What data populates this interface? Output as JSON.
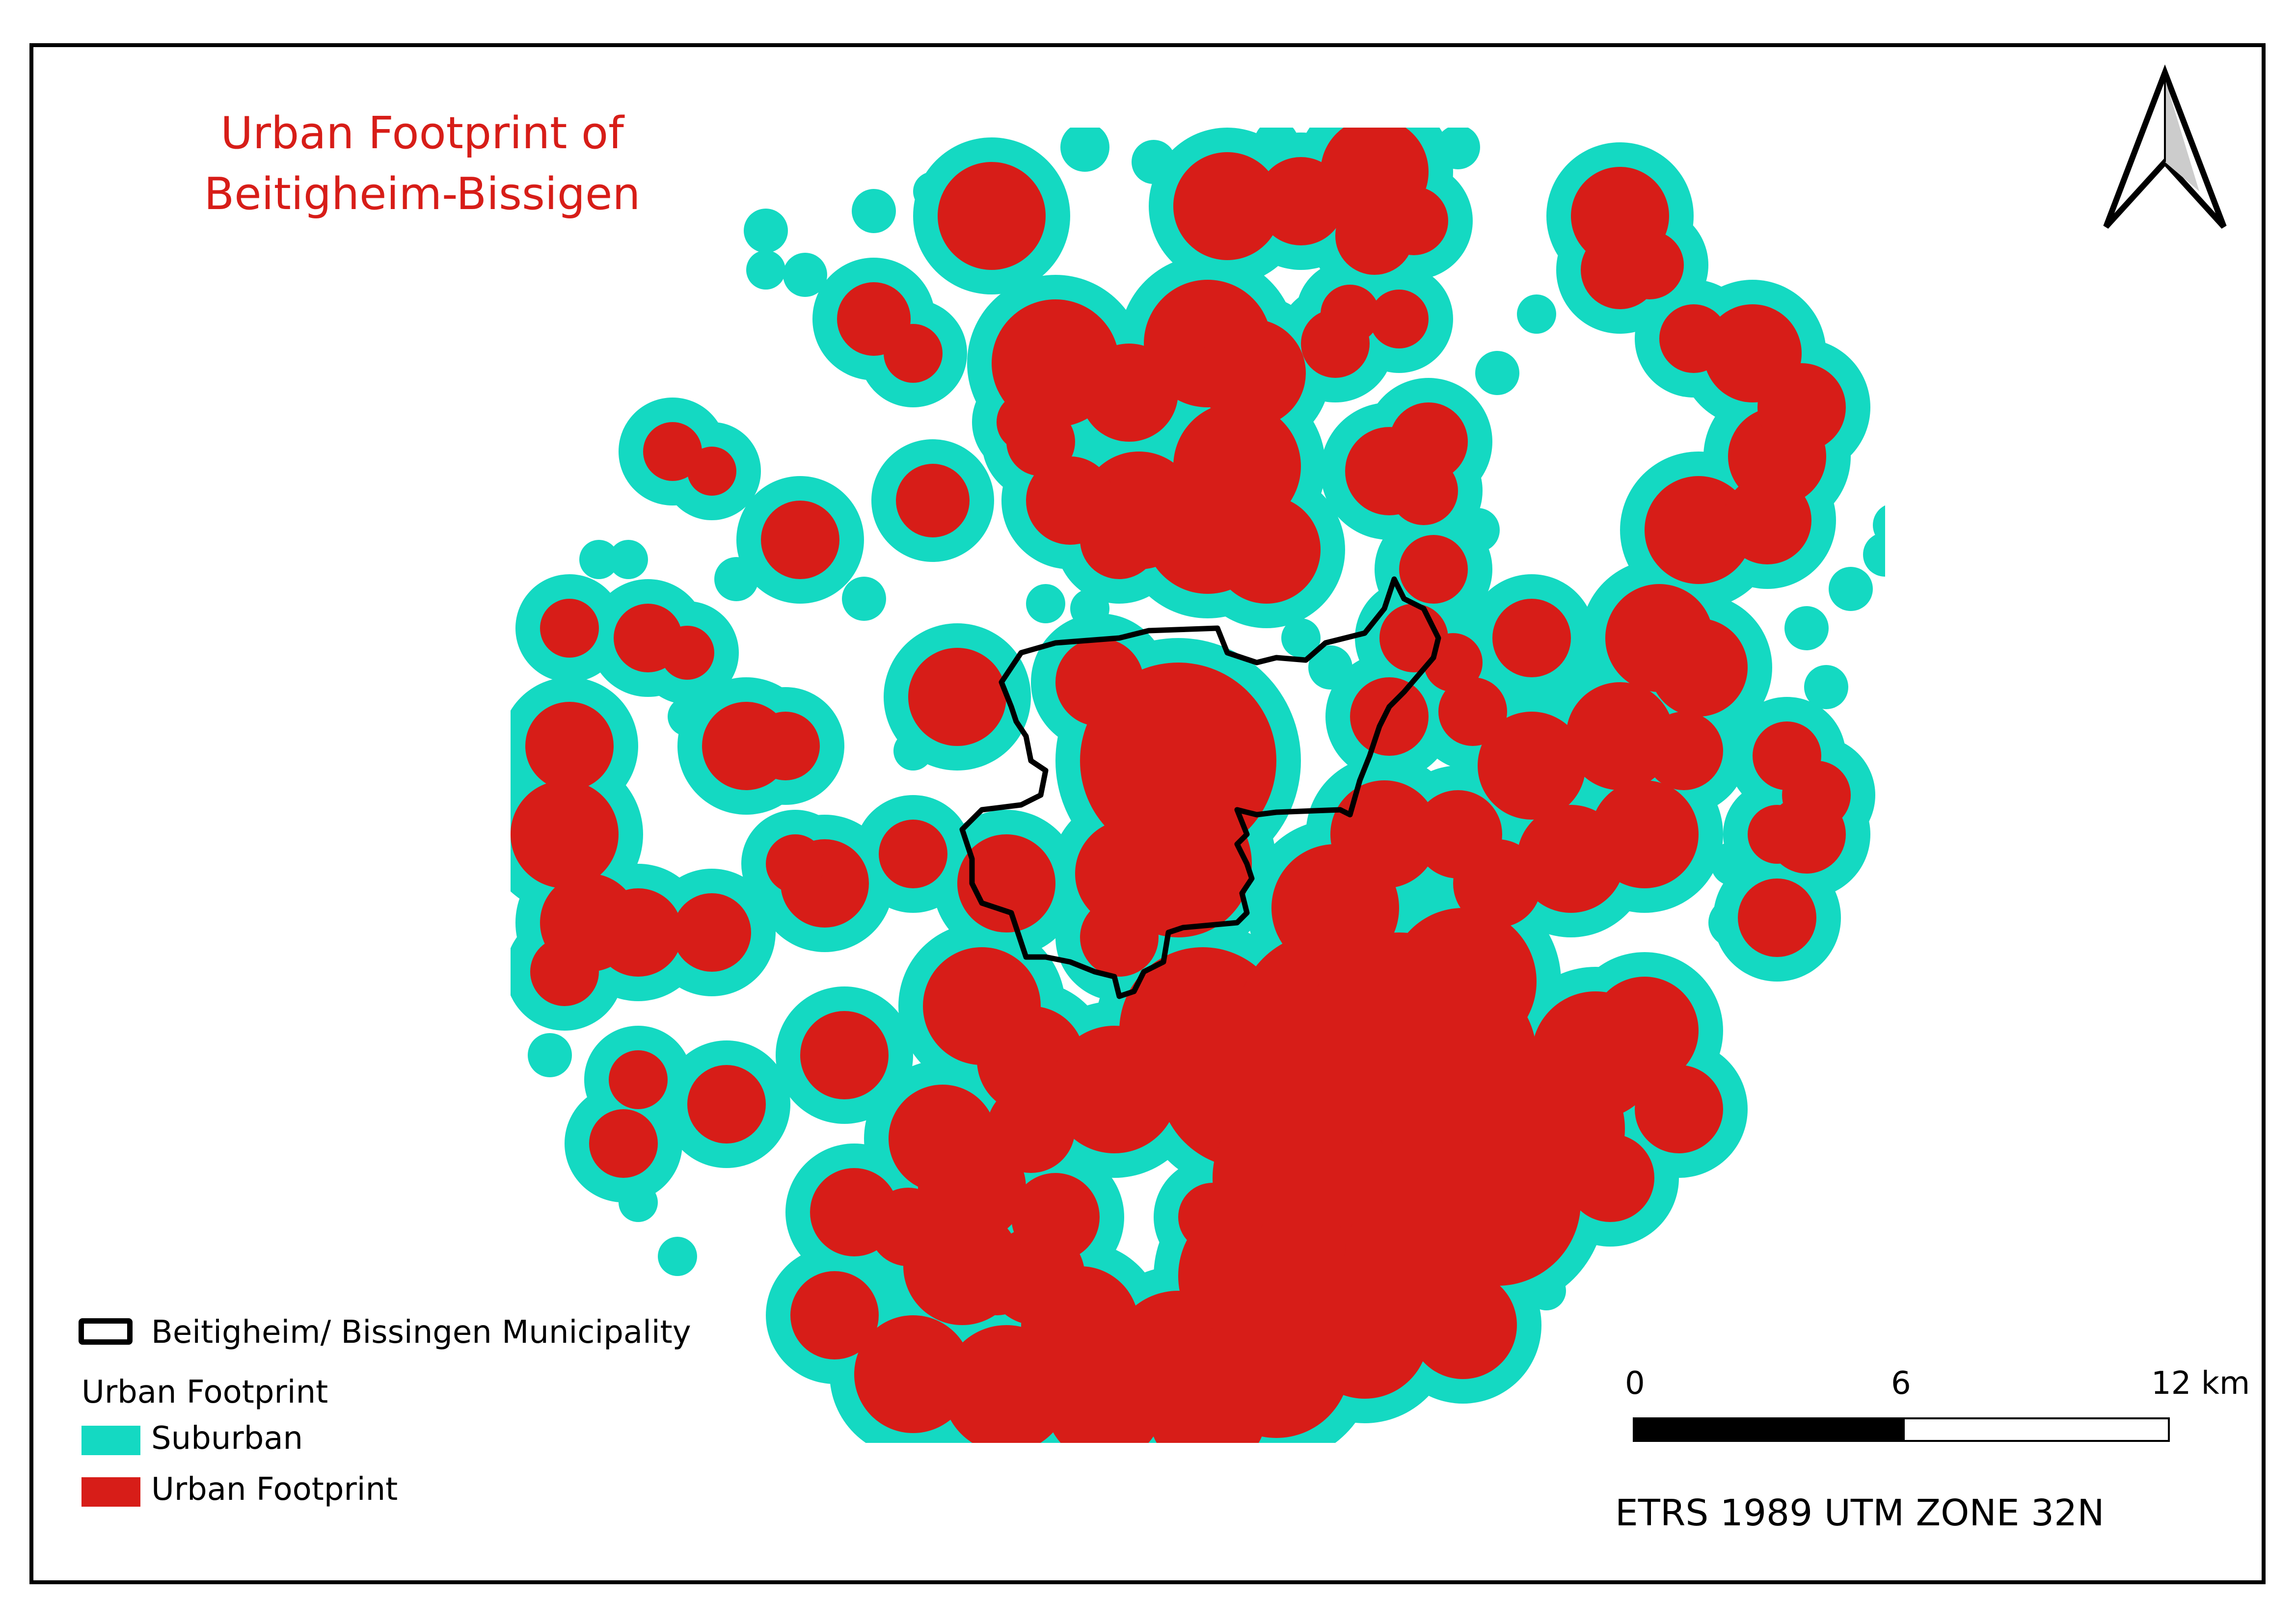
{
  "map": {
    "title": "Urban Footprint of\nBeitigheim-Bissigen",
    "title_color": "#d71d18",
    "north_arrow": "north-arrow-icon",
    "crs": "ETRS 1989 UTM ZONE 32N"
  },
  "legend": {
    "boundary_label": "Beitigheim/ Bissingen Municipality",
    "group_title": "Urban Footprint",
    "items": [
      {
        "label": "Suburban",
        "color": "#14d9c2"
      },
      {
        "label": "Urban Footprint",
        "color": "#d71d18"
      }
    ]
  },
  "scalebar": {
    "ticks": [
      "0",
      "6",
      "12 km"
    ]
  }
}
